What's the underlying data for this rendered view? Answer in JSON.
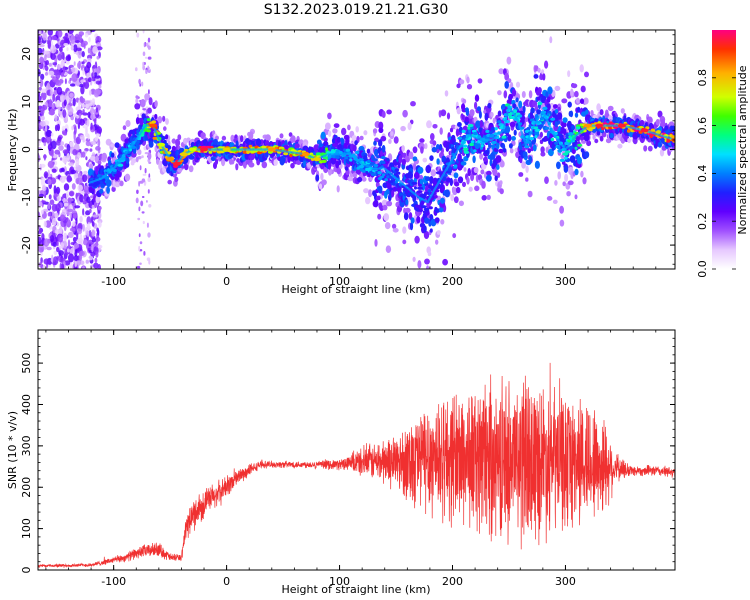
{
  "title": "S132.2023.019.21.21.G30",
  "colors": {
    "snr_line": "#f03030",
    "spectrogram_colormap": [
      "#ffffff",
      "#e6c8ff",
      "#a050ff",
      "#6000ff",
      "#2020ff",
      "#0080ff",
      "#00e0ff",
      "#00ff80",
      "#40ff00",
      "#d0ff00",
      "#ffb000",
      "#ff3000",
      "#ff0080"
    ]
  },
  "chart_data": [
    {
      "type": "heatmap",
      "name": "spectrogram",
      "xlabel": "Height of straight line (km)",
      "ylabel": "Frequency (Hz)",
      "xlim": [
        -167,
        397
      ],
      "ylim": [
        -25,
        25
      ],
      "x_ticks": [
        -100,
        0,
        100,
        200,
        300
      ],
      "y_ticks": [
        -20,
        -10,
        0,
        10,
        20
      ],
      "colorbar": {
        "label": "Normalized spectral amplitude",
        "range": [
          0,
          1
        ],
        "ticks": [
          "0.0",
          "0.2",
          "0.4",
          "0.6",
          "0.8"
        ]
      },
      "ridge": {
        "x": [
          -122,
          -110,
          -100,
          -90,
          -80,
          -72,
          -65,
          -58,
          -50,
          -44,
          -38,
          -30,
          -20,
          0,
          40,
          70,
          80,
          90,
          100,
          110,
          120,
          130,
          140,
          150,
          160,
          170,
          178,
          185,
          195,
          205,
          215,
          225,
          235,
          245,
          250,
          258,
          265,
          272,
          280,
          290,
          300,
          310,
          320,
          330,
          350,
          370,
          397
        ],
        "y": [
          -7,
          -6,
          -4,
          -1,
          2,
          5,
          5,
          1,
          -2,
          -3,
          -1,
          0,
          0,
          0,
          0,
          -1,
          -2,
          -1,
          -1,
          -1,
          -3,
          -4,
          -4,
          -6,
          -8,
          -10,
          -11,
          -8,
          -4,
          0,
          3,
          2,
          2,
          4,
          9,
          6,
          1,
          5,
          8,
          3,
          0,
          3,
          5,
          5,
          5,
          4,
          2
        ]
      },
      "ridge_amplitude": [
        0.35,
        0.4,
        0.45,
        0.5,
        0.45,
        0.6,
        0.9,
        0.75,
        0.85,
        0.95,
        0.8,
        0.75,
        0.95,
        0.8,
        0.85,
        0.85,
        0.8,
        0.55,
        0.45,
        0.45,
        0.5,
        0.45,
        0.4,
        0.4,
        0.35,
        0.3,
        0.3,
        0.3,
        0.35,
        0.45,
        0.55,
        0.5,
        0.45,
        0.5,
        0.55,
        0.5,
        0.45,
        0.5,
        0.5,
        0.5,
        0.5,
        0.6,
        0.85,
        0.95,
        0.95,
        0.95,
        0.9
      ]
    },
    {
      "type": "line",
      "name": "snr",
      "xlabel": "Height of straight line (km)",
      "ylabel": "SNR (10 * v/v)",
      "xlim": [
        -167,
        397
      ],
      "ylim": [
        0,
        580
      ],
      "x_ticks": [
        -100,
        0,
        100,
        200,
        300
      ],
      "y_ticks": [
        0,
        100,
        200,
        300,
        400,
        500
      ],
      "envelope": {
        "x": [
          -167,
          -120,
          -90,
          -75,
          -60,
          -50,
          -40,
          -35,
          -25,
          -15,
          -5,
          10,
          30,
          50,
          80,
          100,
          120,
          150,
          170,
          190,
          210,
          230,
          250,
          260,
          280,
          300,
          320,
          335,
          345,
          360,
          380,
          397
        ],
        "mean": [
          10,
          12,
          30,
          45,
          50,
          30,
          30,
          110,
          150,
          170,
          190,
          225,
          255,
          255,
          255,
          255,
          260,
          265,
          270,
          275,
          275,
          270,
          270,
          265,
          270,
          265,
          265,
          255,
          245,
          240,
          240,
          235
        ],
        "spread": [
          4,
          5,
          12,
          18,
          20,
          12,
          10,
          40,
          45,
          40,
          35,
          25,
          10,
          10,
          10,
          15,
          40,
          80,
          150,
          180,
          200,
          220,
          230,
          250,
          220,
          200,
          180,
          140,
          40,
          15,
          15,
          15
        ]
      }
    }
  ]
}
